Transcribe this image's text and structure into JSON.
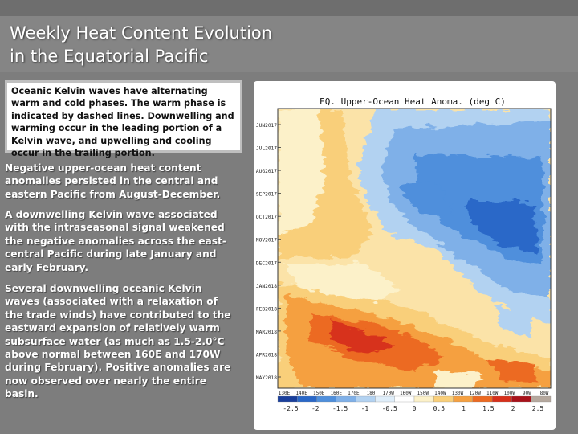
{
  "slide": {
    "title": "Weekly Heat Content Evolution\nin the Equatorial Pacific",
    "note": "Oceanic Kelvin waves have alternating warm and cold phases. The warm phase is indicated by dashed lines. Downwelling and warming occur in the leading portion of a Kelvin wave, and upwelling and cooling occur in the trailing portion.",
    "paragraphs": [
      "Negative upper-ocean heat content anomalies persisted in the central and eastern Pacific from August-December.",
      "A downwelling Kelvin wave associated with the intraseasonal signal weakened the negative anomalies across the east-central Pacific during late January and early February.",
      "Several downwelling oceanic Kelvin waves (associated with a relaxation of the trade winds) have contributed to the eastward expansion of relatively warm subsurface water (as much as 1.5-2.0°C above normal between 160E and 170W during February). Positive anomalies are now observed over nearly the entire basin."
    ]
  },
  "chart_data": {
    "type": "heatmap",
    "title": "EQ. Upper-Ocean Heat Anoma. (deg C)",
    "y_ticks": [
      "JUN2017",
      "JUL2017",
      "AUG2017",
      "SEP2017",
      "OCT2017",
      "NOV2017",
      "DEC2017",
      "JAN2018",
      "FEB2018",
      "MAR2018",
      "APR2018",
      "MAY2018"
    ],
    "x_ticks": [
      "130E",
      "140E",
      "150E",
      "160E",
      "170E",
      "180",
      "170W",
      "160W",
      "150W",
      "140W",
      "130W",
      "120W",
      "110W",
      "100W",
      "90W",
      "80W"
    ],
    "colorbar_ticks": [
      "-2.5",
      "-2",
      "-1.5",
      "-1",
      "-0.5",
      "0",
      "0.5",
      "1",
      "1.5",
      "2",
      "2.5"
    ],
    "colorbar_colors": [
      "#1a3f9c",
      "#2a68c8",
      "#4f8fdc",
      "#7fb0e8",
      "#b2d2f1",
      "#dfeefa",
      "#ffffff",
      "#fcf1c9",
      "#f9cf7a",
      "#f5a041",
      "#ec6a22",
      "#d7301b",
      "#a8121a",
      "#b5a89e"
    ]
  }
}
